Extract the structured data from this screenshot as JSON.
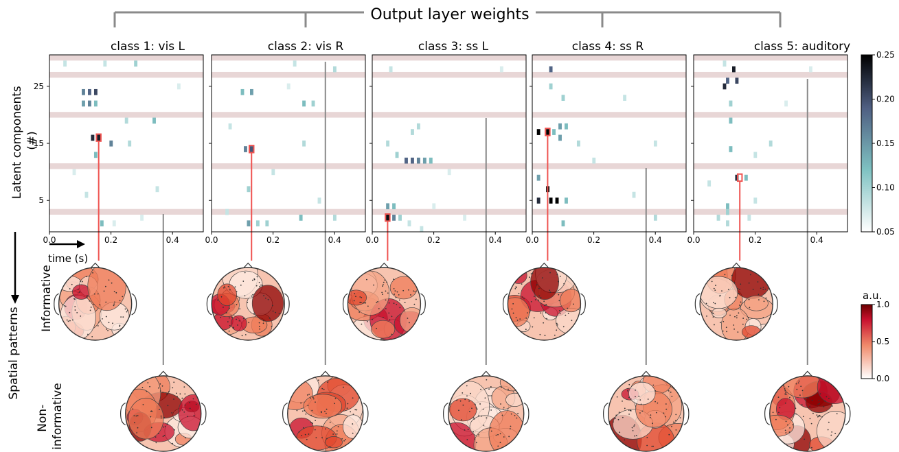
{
  "figure_title": "Output layer weights",
  "ylabel": "Latent components\n(#)",
  "xlabel": "time (s)",
  "row_labels": {
    "spatial": "Spatial patterns",
    "informative": "Informative",
    "noninformative": "Non-\ninformative"
  },
  "colorbar_weights": {
    "ticks": [
      "0.25",
      "0.20",
      "0.15",
      "0.10",
      "0.05"
    ],
    "range": [
      0.05,
      0.25
    ],
    "colors": [
      "#ffffff",
      "#7fc2c2",
      "#4f5f82",
      "#000000"
    ]
  },
  "colorbar_patterns": {
    "label": "a.u.",
    "ticks": [
      "1.0",
      "0.5",
      "0.0"
    ],
    "range": [
      0,
      1
    ],
    "colors": [
      "#ffffff",
      "#f08a6a",
      "#c8102e",
      "#6b0000"
    ]
  },
  "colors": {
    "highlight": "#ef5350",
    "connector": "#888888",
    "excluded_row": "#e8d6d6"
  },
  "chart_data": {
    "type": "heatmap",
    "x_ticks": [
      "0.0",
      "0.2",
      "0.4"
    ],
    "y_ticks": [
      "5",
      "15",
      "25"
    ],
    "xlim": [
      0,
      0.5
    ],
    "ylim": [
      0,
      30
    ],
    "excluded_components": [
      3,
      11,
      20,
      27,
      30
    ],
    "panels": [
      {
        "title": "class 1: vis L",
        "informative_component": 16,
        "informative_time": 0.16,
        "noninformative_time": 0.37,
        "cells": [
          [
            0.11,
            24,
            0.16
          ],
          [
            0.13,
            24,
            0.18
          ],
          [
            0.15,
            24,
            0.2
          ],
          [
            0.11,
            22,
            0.14
          ],
          [
            0.13,
            22,
            0.16
          ],
          [
            0.15,
            22,
            0.12
          ],
          [
            0.14,
            16,
            0.22
          ],
          [
            0.16,
            16,
            0.23
          ],
          [
            0.15,
            13,
            0.12
          ],
          [
            0.17,
            1,
            0.12
          ],
          [
            0.2,
            15,
            0.16
          ],
          [
            0.25,
            19,
            0.09
          ],
          [
            0.05,
            29,
            0.08
          ],
          [
            0.18,
            29,
            0.08
          ],
          [
            0.28,
            29,
            0.1
          ],
          [
            0.34,
            19,
            0.12
          ],
          [
            0.26,
            15,
            0.09
          ],
          [
            0.21,
            1,
            0.07
          ],
          [
            0.42,
            25,
            0.07
          ],
          [
            0.08,
            10,
            0.07
          ],
          [
            0.12,
            6,
            0.08
          ],
          [
            0.35,
            7,
            0.08
          ],
          [
            0.3,
            2,
            0.07
          ]
        ]
      },
      {
        "title": "class 2: vis R",
        "informative_component": 14,
        "informative_time": 0.13,
        "noninformative_time": 0.37,
        "cells": [
          [
            0.11,
            14,
            0.16
          ],
          [
            0.13,
            14,
            0.19
          ],
          [
            0.1,
            24,
            0.12
          ],
          [
            0.13,
            24,
            0.14
          ],
          [
            0.3,
            22,
            0.12
          ],
          [
            0.33,
            22,
            0.1
          ],
          [
            0.3,
            15,
            0.09
          ],
          [
            0.12,
            7,
            0.1
          ],
          [
            0.12,
            1,
            0.14
          ],
          [
            0.15,
            1,
            0.1
          ],
          [
            0.18,
            1,
            0.1
          ],
          [
            0.29,
            2,
            0.12
          ],
          [
            0.4,
            2,
            0.09
          ],
          [
            0.27,
            29,
            0.08
          ],
          [
            0.4,
            28,
            0.09
          ],
          [
            0.06,
            18,
            0.08
          ],
          [
            0.2,
            10,
            0.08
          ],
          [
            0.35,
            5,
            0.08
          ],
          [
            0.05,
            3,
            0.08
          ],
          [
            0.25,
            25,
            0.07
          ]
        ]
      },
      {
        "title": "class 3: ss L",
        "informative_component": 2,
        "informative_time": 0.05,
        "noninformative_time": 0.37,
        "cells": [
          [
            0.05,
            2,
            0.24
          ],
          [
            0.07,
            2,
            0.16
          ],
          [
            0.09,
            2,
            0.1
          ],
          [
            0.05,
            4,
            0.14
          ],
          [
            0.07,
            4,
            0.12
          ],
          [
            0.11,
            12,
            0.18
          ],
          [
            0.13,
            12,
            0.18
          ],
          [
            0.15,
            12,
            0.16
          ],
          [
            0.17,
            12,
            0.14
          ],
          [
            0.19,
            12,
            0.12
          ],
          [
            0.08,
            13,
            0.1
          ],
          [
            0.05,
            15,
            0.09
          ],
          [
            0.13,
            17,
            0.09
          ],
          [
            0.15,
            18,
            0.09
          ],
          [
            0.12,
            1,
            0.08
          ],
          [
            0.16,
            0,
            0.08
          ],
          [
            0.2,
            4,
            0.07
          ],
          [
            0.3,
            2,
            0.07
          ],
          [
            0.42,
            28,
            0.07
          ],
          [
            0.25,
            10,
            0.07
          ],
          [
            0.06,
            28,
            0.08
          ]
        ]
      },
      {
        "title": "class 4: ss R",
        "informative_component": 17,
        "informative_time": 0.05,
        "noninformative_time": 0.37,
        "cells": [
          [
            0.05,
            17,
            0.25
          ],
          [
            0.02,
            17,
            0.25
          ],
          [
            0.07,
            17,
            0.12
          ],
          [
            0.09,
            18,
            0.14
          ],
          [
            0.11,
            18,
            0.12
          ],
          [
            0.05,
            7,
            0.25
          ],
          [
            0.06,
            5,
            0.25
          ],
          [
            0.08,
            5,
            0.25
          ],
          [
            0.11,
            5,
            0.12
          ],
          [
            0.02,
            9,
            0.14
          ],
          [
            0.02,
            5,
            0.22
          ],
          [
            0.06,
            28,
            0.18
          ],
          [
            0.06,
            25,
            0.1
          ],
          [
            0.1,
            23,
            0.1
          ],
          [
            0.15,
            15,
            0.09
          ],
          [
            0.1,
            1,
            0.12
          ],
          [
            0.3,
            23,
            0.08
          ],
          [
            0.4,
            2,
            0.09
          ],
          [
            0.4,
            15,
            0.08
          ],
          [
            0.2,
            12,
            0.08
          ],
          [
            0.33,
            6,
            0.08
          ],
          [
            0.09,
            16,
            0.14
          ]
        ]
      },
      {
        "title": "class 5: auditory",
        "informative_component": 9,
        "informative_time": 0.15,
        "noninformative_time": 0.37,
        "cells": [
          [
            0.13,
            28,
            0.23
          ],
          [
            0.11,
            26,
            0.18
          ],
          [
            0.14,
            26,
            0.2
          ],
          [
            0.1,
            25,
            0.22
          ],
          [
            0.14,
            9,
            0.22
          ],
          [
            0.17,
            9,
            0.12
          ],
          [
            0.12,
            19,
            0.12
          ],
          [
            0.12,
            14,
            0.12
          ],
          [
            0.11,
            4,
            0.12
          ],
          [
            0.11,
            3,
            0.1
          ],
          [
            0.08,
            2,
            0.09
          ],
          [
            0.18,
            2,
            0.08
          ],
          [
            0.11,
            1,
            0.09
          ],
          [
            0.1,
            29,
            0.08
          ],
          [
            0.12,
            22,
            0.1
          ],
          [
            0.25,
            15,
            0.09
          ],
          [
            0.2,
            13,
            0.08
          ],
          [
            0.05,
            8,
            0.08
          ],
          [
            0.2,
            5,
            0.08
          ],
          [
            0.3,
            22,
            0.07
          ],
          [
            0.38,
            28,
            0.07
          ]
        ]
      }
    ]
  }
}
